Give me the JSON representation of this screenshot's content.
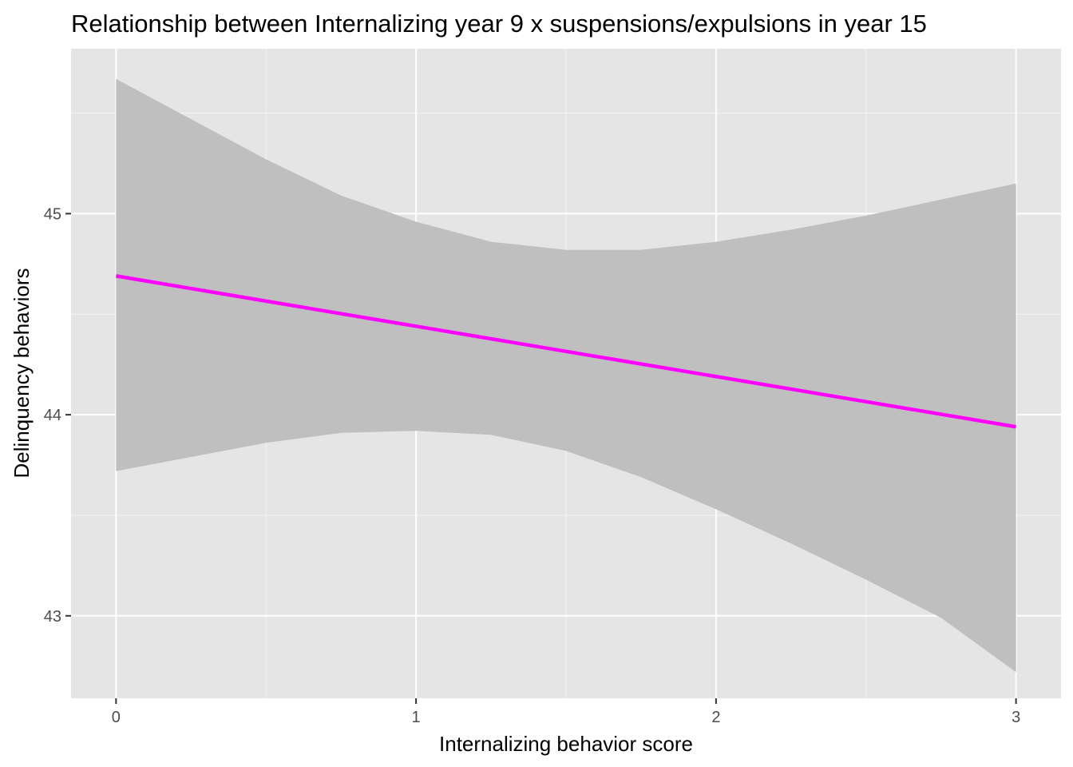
{
  "chart_data": {
    "type": "line",
    "title": "Relationship between Internalizing year 9 x suspensions/expulsions in year 15",
    "xlabel": "Internalizing behavior score",
    "ylabel": "Delinquency behaviors",
    "xlim": [
      -0.15,
      3.15
    ],
    "ylim": [
      42.59,
      45.82
    ],
    "x_ticks": [
      0,
      1,
      2,
      3
    ],
    "x_tick_labels": [
      "0",
      "1",
      "2",
      "3"
    ],
    "y_ticks": [
      43,
      44,
      45
    ],
    "y_tick_labels": [
      "43",
      "44",
      "45"
    ],
    "x_minor": [
      0.5,
      1.5,
      2.5
    ],
    "y_minor": [
      43.5,
      44.5,
      45.5
    ],
    "grid": true,
    "legend": "none",
    "series": [
      {
        "x": [
          0,
          3
        ],
        "y": [
          44.69,
          43.94
        ]
      }
    ],
    "ribbon": {
      "x": [
        0,
        0.25,
        0.5,
        0.75,
        1,
        1.25,
        1.5,
        1.75,
        2,
        2.25,
        2.5,
        2.75,
        3
      ],
      "upper": [
        45.67,
        45.47,
        45.27,
        45.09,
        44.96,
        44.86,
        44.82,
        44.82,
        44.86,
        44.92,
        44.99,
        45.07,
        45.15
      ],
      "lower": [
        43.72,
        43.79,
        43.86,
        43.91,
        43.92,
        43.9,
        43.82,
        43.69,
        43.53,
        43.36,
        43.18,
        42.99,
        42.72
      ]
    },
    "colors": {
      "panel": "#e5e5e5",
      "grid_major": "#ffffff",
      "ribbon": "#bfbfbf",
      "line": "#ff00ff",
      "tick": "#333333"
    }
  }
}
